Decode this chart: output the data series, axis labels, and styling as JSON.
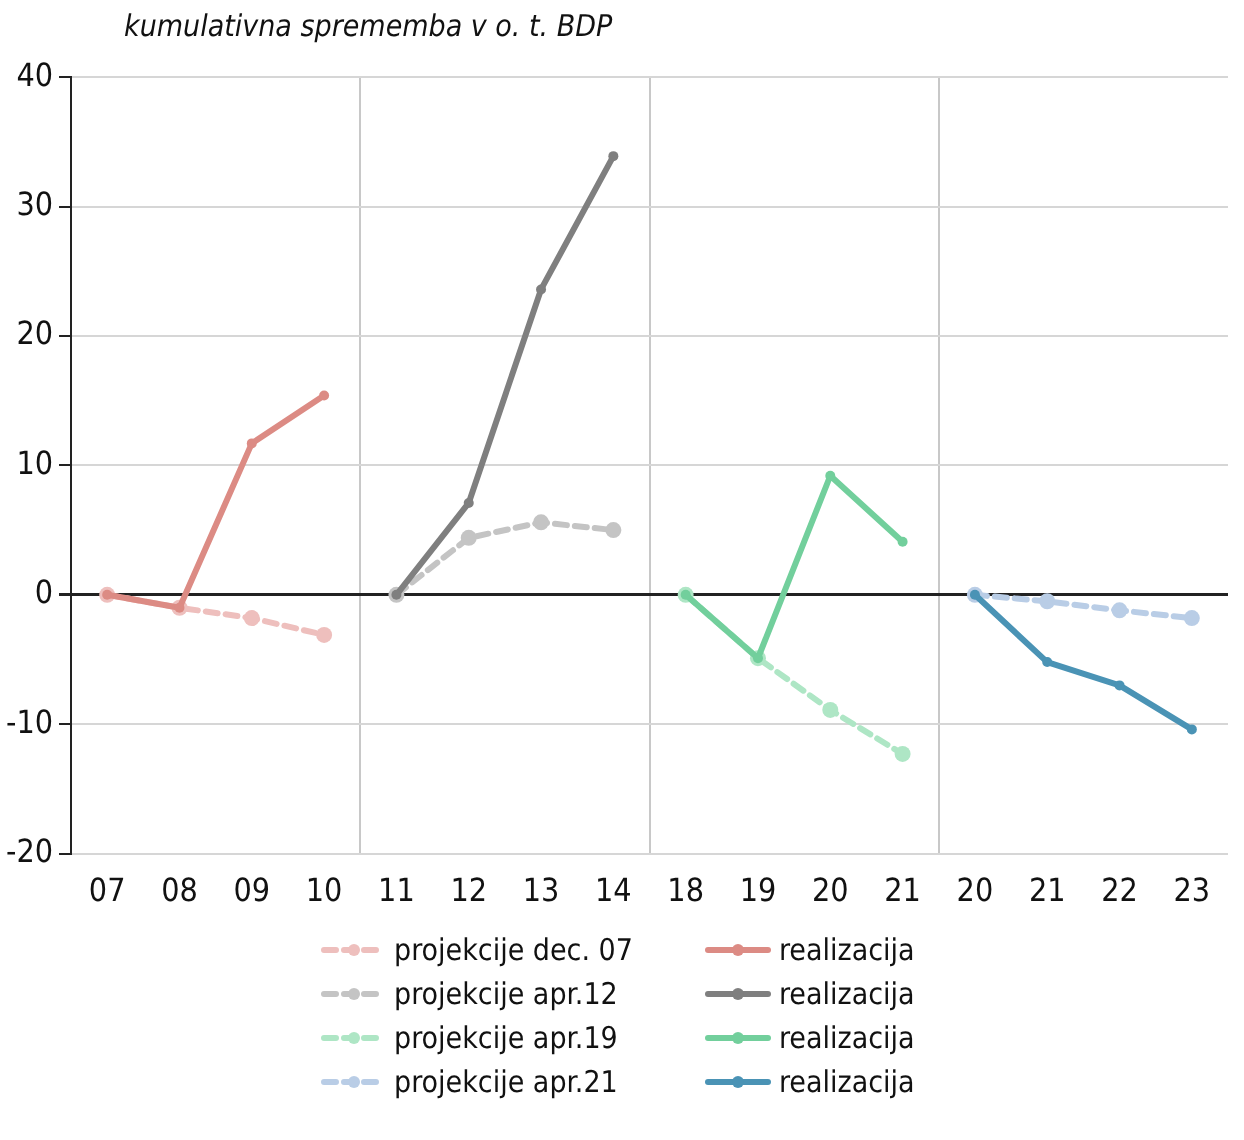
{
  "chart_data": {
    "type": "line",
    "title": "kumulativna sprememba v o. t. BDP",
    "categories": [
      "07",
      "08",
      "09",
      "10",
      "11",
      "12",
      "13",
      "14",
      "18",
      "19",
      "20",
      "21",
      "20",
      "21",
      "22",
      "23"
    ],
    "ylim": [
      -20,
      40
    ],
    "yticks": [
      -20,
      -10,
      0,
      10,
      20,
      30,
      40
    ],
    "grid": "y",
    "legend": "bottom",
    "marker": "circle",
    "series": [
      {
        "name": "projekcije dec. 07",
        "color": "#eebfbd",
        "line_style": "dashed",
        "values": [
          0,
          -1,
          -1.8,
          -3.1,
          null,
          null,
          null,
          null,
          null,
          null,
          null,
          null,
          null,
          null,
          null,
          null
        ]
      },
      {
        "name": "realizacija",
        "color": "#dc8b84",
        "line_style": "solid",
        "values": [
          0,
          -1,
          11.7,
          15.4,
          null,
          null,
          null,
          null,
          null,
          null,
          null,
          null,
          null,
          null,
          null,
          null
        ]
      },
      {
        "name": "projekcije apr.12",
        "color": "#c4c4c4",
        "line_style": "dashed",
        "values": [
          null,
          null,
          null,
          null,
          0,
          4.4,
          5.6,
          5.0,
          null,
          null,
          null,
          null,
          null,
          null,
          null,
          null
        ]
      },
      {
        "name": "realizacija",
        "color": "#7f7f7f",
        "line_style": "solid",
        "values": [
          null,
          null,
          null,
          null,
          0,
          7.1,
          23.6,
          33.9,
          null,
          null,
          null,
          null,
          null,
          null,
          null,
          null
        ]
      },
      {
        "name": "projekcije apr.19",
        "color": "#aee6c5",
        "line_style": "dashed",
        "values": [
          null,
          null,
          null,
          null,
          null,
          null,
          null,
          null,
          0,
          -4.9,
          -8.9,
          -12.3,
          null,
          null,
          null,
          null
        ]
      },
      {
        "name": "realizacija",
        "color": "#72cf9c",
        "line_style": "solid",
        "values": [
          null,
          null,
          null,
          null,
          null,
          null,
          null,
          null,
          0,
          -4.9,
          9.2,
          4.1,
          null,
          null,
          null,
          null
        ]
      },
      {
        "name": "projekcije apr.21",
        "color": "#b9cde6",
        "line_style": "dashed",
        "values": [
          null,
          null,
          null,
          null,
          null,
          null,
          null,
          null,
          null,
          null,
          null,
          null,
          0,
          -0.5,
          -1.2,
          -1.8
        ]
      },
      {
        "name": "realizacija",
        "color": "#4a93b5",
        "line_style": "solid",
        "values": [
          null,
          null,
          null,
          null,
          null,
          null,
          null,
          null,
          null,
          null,
          null,
          null,
          0,
          -5.2,
          -7.0,
          -10.4
        ]
      }
    ]
  }
}
